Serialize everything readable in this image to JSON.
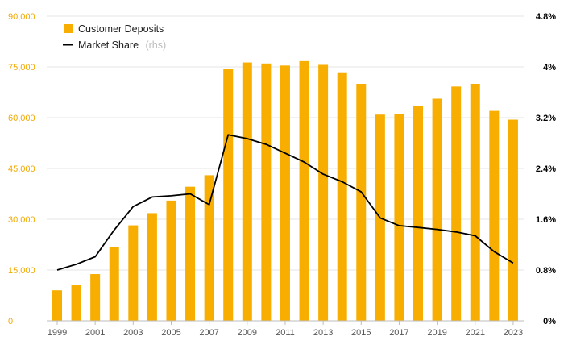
{
  "chart_data": {
    "type": "bar",
    "title": "",
    "xlabel": "",
    "ylabel": "",
    "y_right_label": "",
    "categories": [
      "1999",
      "2000",
      "2001",
      "2002",
      "2003",
      "2004",
      "2005",
      "2006",
      "2007",
      "2008",
      "2009",
      "2010",
      "2011",
      "2012",
      "2013",
      "2014",
      "2015",
      "2016",
      "2017",
      "2018",
      "2019",
      "2020",
      "2021",
      "2022",
      "2023"
    ],
    "x_tick_labels": [
      "1999",
      "2001",
      "2003",
      "2005",
      "2007",
      "2009",
      "2011",
      "2013",
      "2015",
      "2017",
      "2019",
      "2021",
      "2023"
    ],
    "series": [
      {
        "name": "Customer Deposits",
        "type": "bar",
        "axis": "left",
        "color": "#F7AE00",
        "values": [
          9000,
          10700,
          13800,
          21700,
          28200,
          31800,
          35500,
          39600,
          43000,
          74400,
          76300,
          76000,
          75400,
          76700,
          75600,
          73400,
          70000,
          60900,
          61000,
          63500,
          65600,
          69200,
          70000,
          62000,
          59400
        ]
      },
      {
        "name": "Market Share",
        "name_suffix": "(rhs)",
        "type": "line",
        "axis": "right",
        "color": "#000000",
        "values": [
          0.008,
          0.0089,
          0.0101,
          0.0143,
          0.018,
          0.0195,
          0.0197,
          0.02,
          0.0183,
          0.0293,
          0.0287,
          0.0278,
          0.0264,
          0.025,
          0.0231,
          0.0219,
          0.0203,
          0.0162,
          0.015,
          0.0147,
          0.0144,
          0.014,
          0.0134,
          0.0109,
          0.0091
        ]
      }
    ],
    "y_left": {
      "min": 0,
      "max": 90000,
      "ticks": [
        "0",
        "15,000",
        "30,000",
        "45,000",
        "60,000",
        "75,000",
        "90,000"
      ],
      "tick_color": "#F2A900"
    },
    "y_right": {
      "min": 0,
      "max": 0.048,
      "ticks": [
        "0%",
        "0.8%",
        "1.6%",
        "2.4%",
        "3.2%",
        "4%",
        "4.8%"
      ],
      "tick_color": "#000000"
    },
    "grid": true,
    "legend": "top-left"
  }
}
